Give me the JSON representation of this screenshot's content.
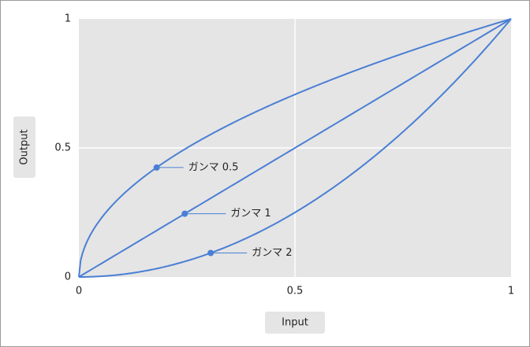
{
  "chart_data": {
    "type": "line",
    "title": "",
    "xlabel": "Input",
    "ylabel": "Output",
    "xlim": [
      0,
      1
    ],
    "ylim": [
      0,
      1
    ],
    "xticks": [
      "0",
      "0.5",
      "1"
    ],
    "yticks": [
      "0",
      "0.5",
      "1"
    ],
    "grid": true,
    "colors": {
      "line": "#4a7fd4",
      "plot_background": "#e5e5e5",
      "grid": "#ffffff",
      "label_box": "#e5e5e5"
    },
    "series": [
      {
        "label": "ガンマ 0.5",
        "gamma": 0.5,
        "x": [
          0,
          0.01,
          0.025,
          0.05,
          0.1,
          0.15,
          0.18,
          0.2,
          0.3,
          0.4,
          0.5,
          0.6,
          0.7,
          0.8,
          0.9,
          1
        ],
        "y": [
          0,
          0.1,
          0.158,
          0.224,
          0.316,
          0.387,
          0.424,
          0.447,
          0.548,
          0.632,
          0.707,
          0.775,
          0.837,
          0.894,
          0.949,
          1
        ],
        "marker": {
          "x": 0.18,
          "y": 0.424
        }
      },
      {
        "label": "ガンマ 1",
        "gamma": 1,
        "x": [
          0,
          0.25,
          0.5,
          0.75,
          1
        ],
        "y": [
          0,
          0.25,
          0.5,
          0.75,
          1
        ],
        "marker": {
          "x": 0.245,
          "y": 0.245
        }
      },
      {
        "label": "ガンマ 2",
        "gamma": 2,
        "x": [
          0,
          0.1,
          0.2,
          0.3,
          0.4,
          0.5,
          0.6,
          0.7,
          0.8,
          0.9,
          1
        ],
        "y": [
          0,
          0.01,
          0.04,
          0.09,
          0.16,
          0.25,
          0.36,
          0.49,
          0.64,
          0.81,
          1
        ],
        "marker": {
          "x": 0.305,
          "y": 0.093
        }
      }
    ]
  }
}
